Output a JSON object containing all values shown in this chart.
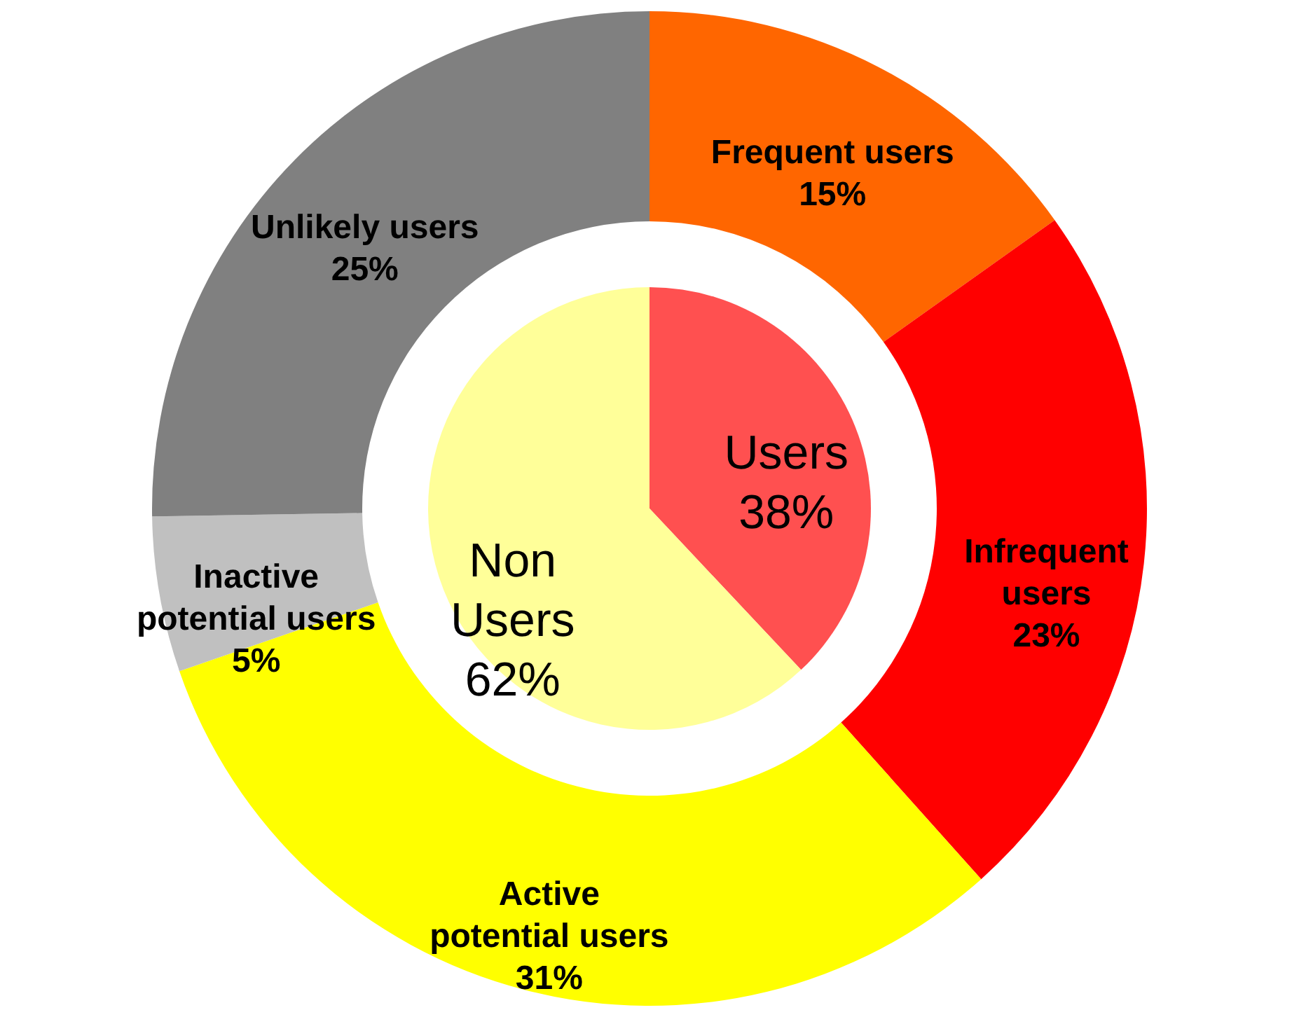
{
  "chart_data": [
    {
      "type": "pie",
      "categories": [
        "Users",
        "Non Users"
      ],
      "values": [
        38,
        62
      ],
      "value_labels": [
        "38%",
        "62%"
      ],
      "colors": [
        "#ff5050",
        "#ffff99"
      ]
    },
    {
      "type": "donut",
      "categories": [
        "Frequent users",
        "Infrequent users",
        "Active potential users",
        "Inactive potential users",
        "Unlikely users"
      ],
      "values": [
        15,
        23,
        31,
        5,
        25
      ],
      "value_labels": [
        "15%",
        "23%",
        "31%",
        "5%",
        "25%"
      ],
      "colors": [
        "#ff6600",
        "#ff0000",
        "#ffff00",
        "#c0c0c0",
        "#808080"
      ]
    }
  ]
}
